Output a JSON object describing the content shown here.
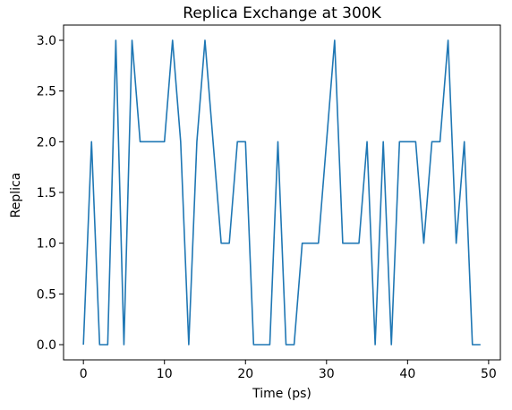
{
  "chart_data": {
    "type": "line",
    "title": "Replica Exchange at 300K",
    "xlabel": "Time (ps)",
    "ylabel": "Replica",
    "xlim": [
      -2.45,
      51.45
    ],
    "ylim": [
      -0.15,
      3.15
    ],
    "xticks": [
      0,
      10,
      20,
      30,
      40,
      50
    ],
    "yticks": [
      0.0,
      0.5,
      1.0,
      1.5,
      2.0,
      2.5,
      3.0
    ],
    "xtick_labels": [
      "0",
      "10",
      "20",
      "30",
      "40",
      "50"
    ],
    "ytick_labels": [
      "0.0",
      "0.5",
      "1.0",
      "1.5",
      "2.0",
      "2.5",
      "3.0"
    ],
    "grid": false,
    "line_color": "#1f77b4",
    "series": [
      {
        "x": [
          0,
          1,
          2,
          3,
          4,
          5,
          6,
          7,
          8,
          9,
          10,
          11,
          12,
          13,
          14,
          15,
          16,
          17,
          18,
          19,
          20,
          21,
          22,
          23,
          24,
          25,
          26,
          27,
          28,
          29,
          30,
          31,
          32,
          33,
          34,
          35,
          36,
          37,
          38,
          39,
          40,
          41,
          42,
          43,
          44,
          45,
          46,
          47,
          48,
          49
        ],
        "values": [
          0,
          2,
          0,
          0,
          3,
          0,
          3,
          2,
          2,
          2,
          2,
          3,
          2,
          0,
          2,
          3,
          2,
          1,
          1,
          2,
          2,
          0,
          0,
          0,
          2,
          0,
          0,
          1,
          1,
          1,
          2,
          3,
          1,
          1,
          1,
          2,
          0,
          2,
          0,
          2,
          2,
          2,
          1,
          2,
          2,
          3,
          1,
          2,
          0,
          0
        ]
      }
    ]
  }
}
